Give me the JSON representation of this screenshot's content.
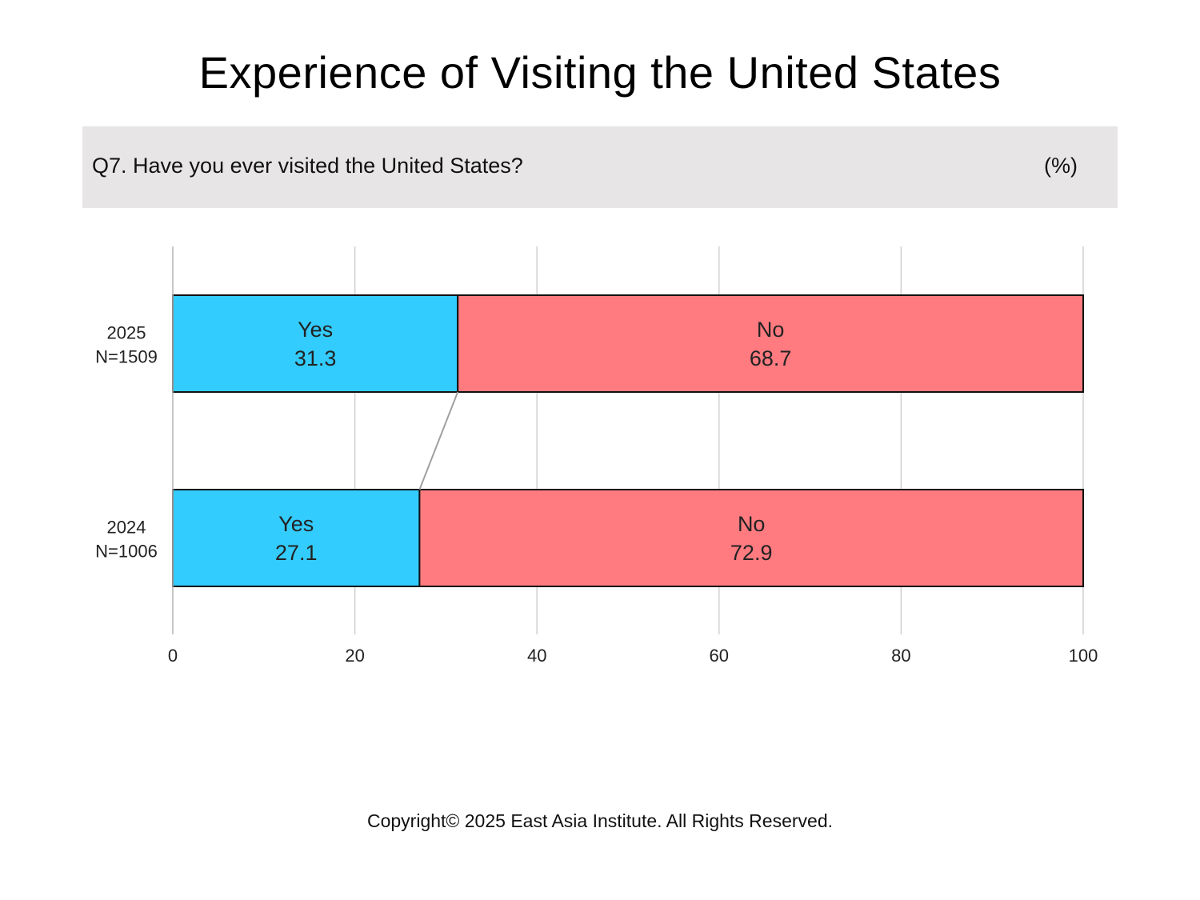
{
  "title": "Experience of Visiting the United States",
  "question": "Q7. Have you ever visited the United States?",
  "unit": "(%)",
  "footer": "Copyright© 2025 East Asia Institute. All Rights Reserved.",
  "colors": {
    "yes": "#33ccff",
    "no": "#ff7b80",
    "grid": "#d0d0d0",
    "connector": "#a0a0a0",
    "header_bg": "#e7e5e6"
  },
  "chart_data": {
    "type": "bar",
    "orientation": "horizontal",
    "stacked": true,
    "categories": [
      {
        "year": "2025",
        "n": "N=1509"
      },
      {
        "year": "2024",
        "n": "N=1006"
      }
    ],
    "series": [
      {
        "name": "Yes",
        "values": [
          31.3,
          27.1
        ],
        "color": "#33ccff"
      },
      {
        "name": "No",
        "values": [
          68.7,
          72.9
        ],
        "color": "#ff7b80"
      }
    ],
    "xlim": [
      0,
      100
    ],
    "xticks": [
      0,
      20,
      40,
      60,
      80,
      100
    ],
    "grid": true
  }
}
